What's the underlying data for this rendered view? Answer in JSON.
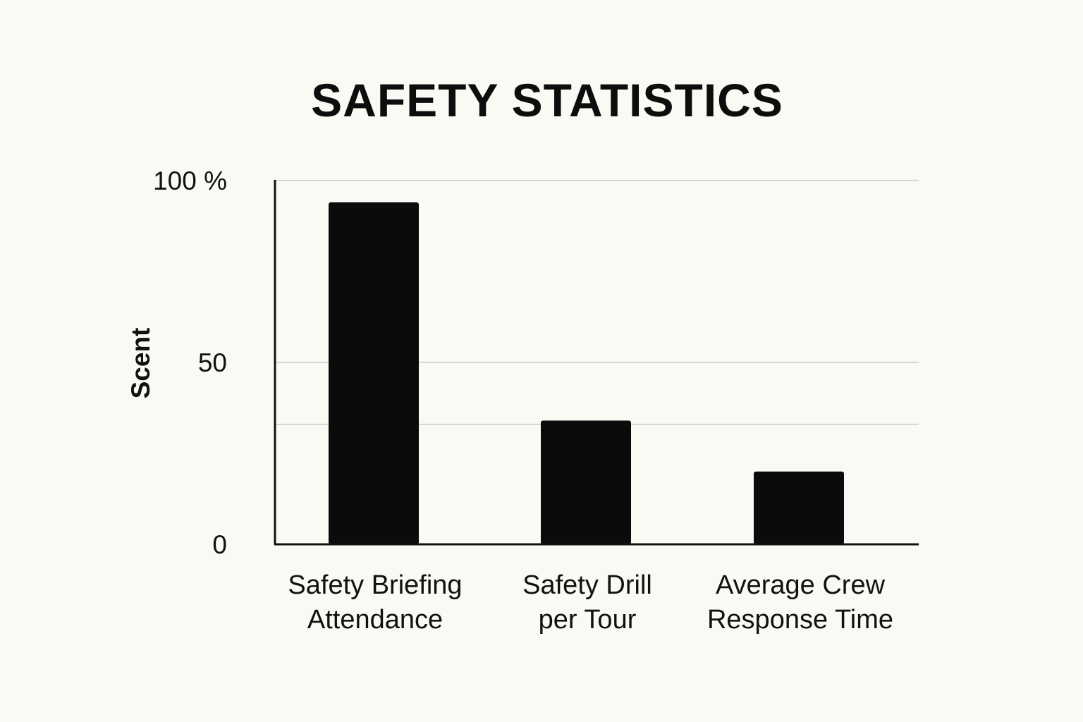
{
  "chart_data": {
    "type": "bar",
    "title": "SAFETY STATISTICS",
    "xlabel": "",
    "ylabel": "Scent",
    "ylim": [
      0,
      100
    ],
    "yticks": [
      {
        "value": 0,
        "label": "0"
      },
      {
        "value": 50,
        "label": "50"
      },
      {
        "value": 100,
        "label": "100 %"
      }
    ],
    "gridlines": [
      33,
      50,
      100
    ],
    "grid": true,
    "legend": "none",
    "categories": [
      [
        "Safety Briefing",
        "Attendance"
      ],
      [
        "Safety Drill",
        "per Tour"
      ],
      [
        "Average Crew",
        "Response Time"
      ]
    ],
    "values": [
      94,
      34,
      20
    ],
    "colors": {
      "bar": "#0b0b0c",
      "background": "#fbf9f4",
      "grid": "#c9c9d2"
    }
  }
}
